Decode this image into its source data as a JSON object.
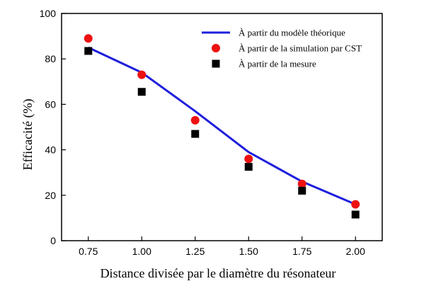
{
  "chart_data": {
    "type": "scatter",
    "xlabel": "Distance divisée par le diamètre du résonateur",
    "ylabel": "Efficacité (%)",
    "xlim": [
      0.625,
      2.125
    ],
    "ylim": [
      0,
      100
    ],
    "xticks": [
      "0.75",
      "1.00",
      "1.25",
      "1.50",
      "1.75",
      "2.00"
    ],
    "yticks": [
      "0",
      "20",
      "40",
      "60",
      "80",
      "100"
    ],
    "legend_position": "top-right",
    "grid": false,
    "series": [
      {
        "name": "À partir du modèle théorique",
        "kind": "line",
        "color": "#1f1fdc",
        "x": [
          0.75,
          1.0,
          1.25,
          1.5,
          1.75,
          2.0
        ],
        "y": [
          85,
          74,
          57,
          39,
          26,
          16
        ]
      },
      {
        "name": "À partir de la simulation par CST",
        "kind": "marker-circle",
        "color": "#ee1111",
        "x": [
          0.75,
          1.0,
          1.25,
          1.5,
          1.75,
          2.0
        ],
        "y": [
          89,
          73,
          53,
          36,
          25,
          16
        ]
      },
      {
        "name": "À partir de la mesure",
        "kind": "marker-square",
        "color": "#000000",
        "x": [
          0.75,
          1.0,
          1.25,
          1.5,
          1.75,
          2.0
        ],
        "y": [
          83.5,
          65.5,
          47,
          32.5,
          22,
          11.5
        ]
      }
    ]
  }
}
